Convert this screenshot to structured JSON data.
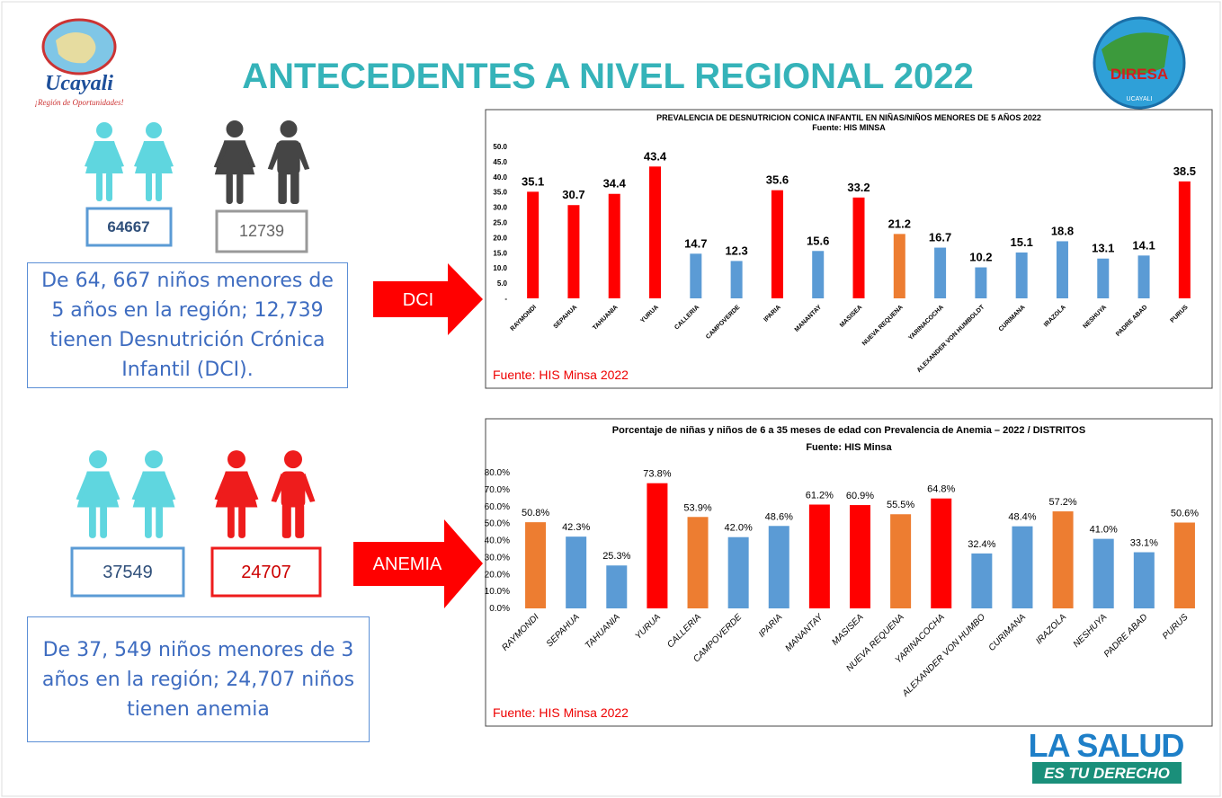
{
  "title": "ANTECEDENTES A NIVEL REGIONAL 2022",
  "logo_left": {
    "name": "Ucayali",
    "slogan": "¡Región de Oportunidades!"
  },
  "logo_right": {
    "name": "DIRESA",
    "region": "UCAYALI"
  },
  "dci": {
    "total": 64667,
    "affected": 12739,
    "arrow": "DCI",
    "description": "De 64, 667 niños menores de 5 años en la región; 12,739 tienen Desnutrición Crónica Infantil (DCI)."
  },
  "anemia": {
    "total": 37549,
    "affected": 24707,
    "arrow": "ANEMIA",
    "description": "De 37, 549 niños menores de 3 años en la región; 24,707 niños tienen anemia"
  },
  "footer": {
    "line1": "LA SALUD",
    "line2": "ES TU DERECHO"
  },
  "chart_data": [
    {
      "type": "bar",
      "title": "PREVALENCIA DE DESNUTRICION CONICA INFANTIL EN NIÑAS/NIÑOS MENORES DE 5 AÑOS 2022",
      "subtitle": "Fuente: HIS MINSA",
      "note": "Fuente: HIS Minsa 2022",
      "categories": [
        "RAYMONDI",
        "SEPAHUA",
        "TAHUANIA",
        "YURUA",
        "CALLERIA",
        "CAMPOVERDE",
        "IPARIA",
        "MANANTAY",
        "MASISEA",
        "NUEVA REQUENA",
        "YARINACOCHA",
        "ALEXANDER VON HUMBOLDT",
        "CURIMANA",
        "IRAZOLA",
        "NESHUYA",
        "PADRE ABAD",
        "PURUS"
      ],
      "values": [
        35.1,
        30.7,
        34.4,
        43.4,
        14.7,
        12.3,
        35.6,
        15.6,
        33.2,
        21.2,
        16.7,
        10.2,
        15.1,
        18.8,
        13.1,
        14.1,
        38.5
      ],
      "colors": [
        "#ff0000",
        "#ff0000",
        "#ff0000",
        "#ff0000",
        "#5b9bd5",
        "#5b9bd5",
        "#ff0000",
        "#5b9bd5",
        "#ff0000",
        "#ed7d31",
        "#5b9bd5",
        "#5b9bd5",
        "#5b9bd5",
        "#5b9bd5",
        "#5b9bd5",
        "#5b9bd5",
        "#ff0000"
      ],
      "ylim": [
        0,
        50
      ],
      "yticks": [
        {
          "value": 0,
          "label": "-"
        },
        {
          "value": 5,
          "label": "5.0"
        },
        {
          "value": 10,
          "label": "10.0"
        },
        {
          "value": 15,
          "label": "15.0"
        },
        {
          "value": 20,
          "label": "20.0"
        },
        {
          "value": 25,
          "label": "25.0"
        },
        {
          "value": 30,
          "label": "30.0"
        },
        {
          "value": 35,
          "label": "35.0"
        },
        {
          "value": 40,
          "label": "40.0"
        },
        {
          "value": 45,
          "label": "45.0"
        },
        {
          "value": 50,
          "label": "50.0"
        }
      ]
    },
    {
      "type": "bar",
      "title": "Porcentaje de niñas y niños de 6 a 35 meses de  edad con Prevalencia de Anemia – 2022 / DISTRITOS",
      "subtitle": "Fuente: HIS Minsa",
      "note": "Fuente: HIS Minsa 2022",
      "categories": [
        "RAYMONDI",
        "SEPAHUA",
        "TAHUANIA",
        "YURUA",
        "CALLERIA",
        "CAMPOVERDE",
        "IPARIA",
        "MANANTAY",
        "MASISEA",
        "NUEVA REQUENA",
        "YARINACOCHA",
        "ALEXANDER VON HUMBO",
        "CURIMANA",
        "IRAZOLA",
        "NESHUYA",
        "PADRE ABAD",
        "PURUS"
      ],
      "values": [
        50.8,
        42.3,
        25.3,
        73.8,
        53.9,
        42.0,
        48.6,
        61.2,
        60.9,
        55.5,
        64.8,
        32.4,
        48.4,
        57.2,
        41.0,
        33.1,
        50.6
      ],
      "value_labels": [
        "50.8%",
        "42.3%",
        "25.3%",
        "73.8%",
        "53.9%",
        "42.0%",
        "48.6%",
        "61.2%",
        "60.9%",
        "55.5%",
        "64.8%",
        "32.4%",
        "48.4%",
        "57.2%",
        "41.0%",
        "33.1%",
        "50.6%"
      ],
      "colors": [
        "#ed7d31",
        "#5b9bd5",
        "#5b9bd5",
        "#ff0000",
        "#ed7d31",
        "#5b9bd5",
        "#5b9bd5",
        "#ff0000",
        "#ff0000",
        "#ed7d31",
        "#ff0000",
        "#5b9bd5",
        "#5b9bd5",
        "#ed7d31",
        "#5b9bd5",
        "#5b9bd5",
        "#ed7d31"
      ],
      "ylim": [
        0,
        80
      ],
      "yticks": [
        {
          "value": 0,
          "label": "0.0%"
        },
        {
          "value": 10,
          "label": "10.0%"
        },
        {
          "value": 20,
          "label": "20.0%"
        },
        {
          "value": 30,
          "label": "30.0%"
        },
        {
          "value": 40,
          "label": "40.0%"
        },
        {
          "value": 50,
          "label": "50.0%"
        },
        {
          "value": 60,
          "label": "60.0%"
        },
        {
          "value": 70,
          "label": "70.0%"
        },
        {
          "value": 80,
          "label": "80.0%"
        }
      ]
    }
  ]
}
